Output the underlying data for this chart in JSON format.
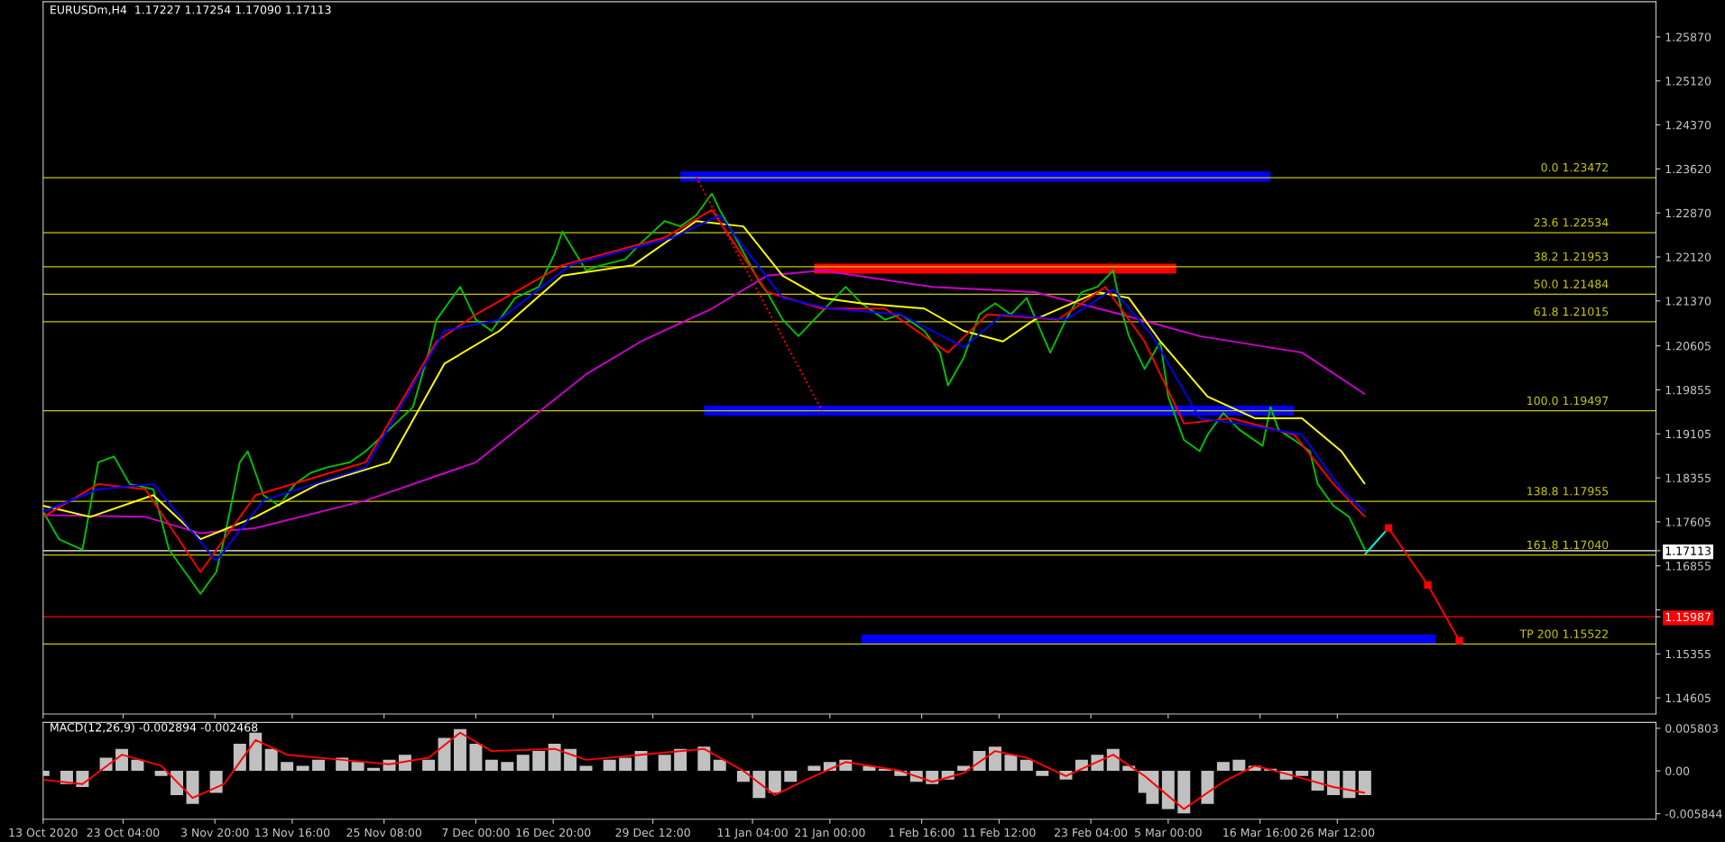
{
  "chart_data": [
    {
      "type": "line",
      "title": "EURUSDm,H4  1.17227 1.17254 1.17090 1.17113",
      "xlim": [
        "2020-10-13",
        "2021-05-06"
      ],
      "ylim": [
        1.1433,
        1.2647
      ],
      "tick_labels": "y",
      "xticks": [
        "2020-10-13T00:00",
        "2020-10-23T04:00",
        "2020-11-03T20:00",
        "2020-11-13T16:00",
        "2020-11-25T08:00",
        "2020-12-07T00:00",
        "2020-12-16T20:00",
        "2020-12-29T12:00",
        "2021-01-11T04:00",
        "2021-01-21T00:00",
        "2021-02-01T16:00",
        "2021-02-11T12:00",
        "2021-02-23T04:00",
        "2021-03-05T00:00",
        "2021-03-16T16:00",
        "2021-03-26T12:00"
      ],
      "yticks": [
        {
          "value": 1.2587,
          "label": "1.25870"
        },
        {
          "value": 1.2512,
          "label": "1.25120"
        },
        {
          "value": 1.2437,
          "label": "1.24370"
        },
        {
          "value": 1.2362,
          "label": "1.23620"
        },
        {
          "value": 1.2287,
          "label": "1.22870"
        },
        {
          "value": 1.2212,
          "label": "1.22120"
        },
        {
          "value": 1.2137,
          "label": "1.21370"
        },
        {
          "value": 1.20605,
          "label": "1.20605"
        },
        {
          "value": 1.19855,
          "label": "1.19855"
        },
        {
          "value": 1.19105,
          "label": "1.19105"
        },
        {
          "value": 1.18355,
          "label": "1.18355"
        },
        {
          "value": 1.17605,
          "label": "1.17605"
        },
        {
          "value": 1.17113,
          "label": "1.17113"
        },
        {
          "value": 1.16855,
          "label": "1.16855"
        },
        {
          "value": 1.16105,
          "label": null
        },
        {
          "value": 1.15987,
          "label": "1.15987"
        },
        {
          "value": 1.15355,
          "label": "1.15355"
        },
        {
          "value": 1.14605,
          "label": "1.14605"
        }
      ],
      "ref_lines": [
        {
          "axis": "y",
          "value": 1.23472,
          "label": "0.0 1.23472",
          "color": "#c8c800"
        },
        {
          "axis": "y",
          "value": 1.22534,
          "label": "23.6 1.22534",
          "color": "#c8c800"
        },
        {
          "axis": "y",
          "value": 1.21953,
          "label": "38.2 1.21953",
          "color": "#c8c800"
        },
        {
          "axis": "y",
          "value": 1.21484,
          "label": "50.0 1.21484",
          "color": "#c8c800"
        },
        {
          "axis": "y",
          "value": 1.21015,
          "label": "61.8 1.21015",
          "color": "#c8c800"
        },
        {
          "axis": "y",
          "value": 1.19497,
          "label": "100.0 1.19497",
          "color": "#c8c800"
        },
        {
          "axis": "y",
          "value": 1.17955,
          "label": "138.8 1.17955",
          "color": "#c8c800"
        },
        {
          "axis": "y",
          "value": 1.1704,
          "label": "161.8 1.17040",
          "color": "#c8c800"
        },
        {
          "axis": "y",
          "value": 1.15522,
          "label": "TP 200 1.15522",
          "color": "#c8c800"
        },
        {
          "axis": "y",
          "value": 1.17113,
          "color": "#ffffff"
        },
        {
          "axis": "y",
          "value": 1.15987,
          "color": "#ff0000"
        }
      ],
      "series": [
        {
          "color": "#0000ff",
          "x": [
            "2021-01-02",
            "2021-03-18"
          ],
          "values": [
            1.2349,
            1.2349
          ]
        },
        {
          "color": "#ff0000",
          "x": [
            "2021-01-19",
            "2021-03-06"
          ],
          "values": [
            1.2192,
            1.2192
          ]
        },
        {
          "color": "#0000ff",
          "x": [
            "2021-01-05",
            "2021-03-21"
          ],
          "values": [
            1.195,
            1.195
          ]
        },
        {
          "color": "#0000ff",
          "x": [
            "2021-01-25",
            "2021-04-08"
          ],
          "values": [
            1.156,
            1.156
          ]
        },
        {
          "color": "#cc00cc",
          "x": [
            "2020-10-13",
            "2020-10-26",
            "2020-11-02",
            "2020-11-09",
            "2020-11-23",
            "2020-12-07",
            "2020-12-21",
            "2020-12-28",
            "2021-01-06",
            "2021-01-13",
            "2021-01-20",
            "2021-02-03",
            "2021-02-16",
            "2021-02-27",
            "2021-03-09",
            "2021-03-22",
            "2021-03-30"
          ],
          "values": [
            1.1772,
            1.1769,
            1.1741,
            1.175,
            1.1797,
            1.1862,
            1.2012,
            1.2068,
            1.2124,
            1.218,
            1.2189,
            1.2161,
            1.2152,
            1.2114,
            1.2077,
            1.2049,
            1.1978
          ]
        },
        {
          "color": "#00c000",
          "x": [
            "2020-10-13",
            "2020-10-15",
            "2020-10-18",
            "2020-10-20",
            "2020-10-22",
            "2020-10-24",
            "2020-10-27",
            "2020-10-29",
            "2020-11-01",
            "2020-11-02",
            "2020-11-04",
            "2020-11-05",
            "2020-11-07",
            "2020-11-08",
            "2020-11-10",
            "2020-11-12",
            "2020-11-14",
            "2020-11-16",
            "2020-11-18",
            "2020-11-21",
            "2020-11-23",
            "2020-11-26",
            "2020-11-29",
            "2020-12-01",
            "2020-12-02",
            "2020-12-05",
            "2020-12-07",
            "2020-12-09",
            "2020-12-10",
            "2020-12-12",
            "2020-12-15",
            "2020-12-17",
            "2020-12-18",
            "2020-12-21",
            "2020-12-23",
            "2020-12-26",
            "2020-12-28",
            "2020-12-31",
            "2021-01-02",
            "2021-01-04",
            "2021-01-06",
            "2021-01-07",
            "2021-01-09",
            "2021-01-12",
            "2021-01-13",
            "2021-01-15",
            "2021-01-17",
            "2021-01-19",
            "2021-01-21",
            "2021-01-23",
            "2021-01-25",
            "2021-01-28",
            "2021-01-30",
            "2021-02-02",
            "2021-02-04",
            "2021-02-05",
            "2021-02-07",
            "2021-02-09",
            "2021-02-11",
            "2021-02-13",
            "2021-02-15",
            "2021-02-18",
            "2021-02-20",
            "2021-02-22",
            "2021-02-24",
            "2021-02-26",
            "2021-02-27",
            "2021-02-28",
            "2021-03-02",
            "2021-03-04",
            "2021-03-05",
            "2021-03-07",
            "2021-03-09",
            "2021-03-10",
            "2021-03-12",
            "2021-03-14",
            "2021-03-17",
            "2021-03-18",
            "2021-03-19",
            "2021-03-21",
            "2021-03-23",
            "2021-03-24",
            "2021-03-26",
            "2021-03-28",
            "2021-03-30"
          ],
          "values": [
            1.1778,
            1.1731,
            1.1713,
            1.1862,
            1.1872,
            1.1825,
            1.1816,
            1.1713,
            1.1657,
            1.1638,
            1.1675,
            1.1731,
            1.1862,
            1.1881,
            1.1806,
            1.1788,
            1.1825,
            1.1844,
            1.1853,
            1.1862,
            1.1881,
            1.1918,
            1.1956,
            1.2049,
            1.2105,
            1.2161,
            1.2105,
            1.2086,
            1.2105,
            1.2142,
            1.2161,
            1.2217,
            1.2255,
            1.2189,
            1.2198,
            1.2208,
            1.2236,
            1.2273,
            1.2264,
            1.2283,
            1.232,
            1.2292,
            1.2245,
            1.217,
            1.2152,
            1.2105,
            1.2077,
            1.2105,
            1.2133,
            1.2161,
            1.2133,
            1.2105,
            1.2114,
            1.2086,
            1.2049,
            1.1993,
            1.204,
            1.2114,
            1.2133,
            1.2114,
            1.2142,
            1.2049,
            1.2105,
            1.2152,
            1.2161,
            1.2189,
            1.2124,
            1.2077,
            1.2021,
            1.2068,
            1.1974,
            1.19,
            1.1881,
            1.1909,
            1.1946,
            1.1918,
            1.189,
            1.1956,
            1.1918,
            1.19,
            1.1881,
            1.1825,
            1.1788,
            1.1769,
            1.1713
          ]
        },
        {
          "color": "#ffff00",
          "x": [
            "2020-10-13",
            "2020-10-19",
            "2020-10-27",
            "2020-11-02",
            "2020-11-09",
            "2020-11-17",
            "2020-11-26",
            "2020-12-03",
            "2020-12-10",
            "2020-12-18",
            "2020-12-27",
            "2021-01-04",
            "2021-01-10",
            "2021-01-15",
            "2021-01-20",
            "2021-01-25",
            "2021-02-02",
            "2021-02-07",
            "2021-02-12",
            "2021-02-16",
            "2021-02-24",
            "2021-02-28",
            "2021-03-04",
            "2021-03-10",
            "2021-03-16",
            "2021-03-22",
            "2021-03-27",
            "2021-03-30"
          ],
          "values": [
            1.1788,
            1.1769,
            1.1806,
            1.1731,
            1.1769,
            1.1825,
            1.1862,
            1.203,
            1.2086,
            1.218,
            1.2198,
            1.2273,
            1.2264,
            1.218,
            1.2142,
            1.2133,
            1.2124,
            1.2086,
            1.2068,
            1.2105,
            1.2152,
            1.2142,
            1.2068,
            1.1974,
            1.1937,
            1.1937,
            1.1881,
            1.1825
          ]
        },
        {
          "color": "#ff0000",
          "x": [
            "2020-10-13",
            "2020-10-20",
            "2020-10-26",
            "2020-11-02",
            "2020-11-09",
            "2020-11-23",
            "2020-12-02",
            "2020-12-07",
            "2020-12-18",
            "2020-12-31",
            "2021-01-06",
            "2021-01-13",
            "2021-01-20",
            "2021-01-28",
            "2021-02-05",
            "2021-02-10",
            "2021-02-19",
            "2021-02-25",
            "2021-03-02",
            "2021-03-07",
            "2021-03-13",
            "2021-03-21",
            "2021-03-26",
            "2021-03-30"
          ],
          "values": [
            1.1769,
            1.1825,
            1.1816,
            1.1675,
            1.1806,
            1.1862,
            1.2068,
            1.2114,
            1.2198,
            1.2245,
            1.2292,
            1.2152,
            1.2124,
            1.2124,
            1.2049,
            1.2114,
            1.2105,
            1.2161,
            1.2068,
            1.1928,
            1.1937,
            1.1909,
            1.1825,
            1.1769
          ]
        },
        {
          "color": "#0000ff",
          "x": [
            "2020-10-13",
            "2020-10-20",
            "2020-10-27",
            "2020-11-04",
            "2020-11-10",
            "2020-11-23",
            "2020-12-03",
            "2020-12-10",
            "2020-12-19",
            "2021-01-01",
            "2021-01-07",
            "2021-01-15",
            "2021-01-21",
            "2021-01-30",
            "2021-02-07",
            "2021-02-12",
            "2021-02-20",
            "2021-02-26",
            "2021-03-03",
            "2021-03-09",
            "2021-03-14",
            "2021-03-22",
            "2021-03-27",
            "2021-03-30"
          ],
          "values": [
            1.1778,
            1.1816,
            1.1825,
            1.1694,
            1.1797,
            1.1853,
            1.2086,
            1.2105,
            1.2198,
            1.2245,
            1.2283,
            1.2142,
            1.2124,
            1.2114,
            1.2058,
            1.2114,
            1.2105,
            1.2157,
            1.2077,
            1.1937,
            1.1928,
            1.1909,
            1.1816,
            1.1778
          ]
        },
        {
          "color": "#ff0000",
          "line_style": "dotted",
          "x": [
            "2021-01-04",
            "2021-01-20"
          ],
          "values": [
            1.2348,
            1.195
          ]
        },
        {
          "color": "#00ffcc",
          "x": [
            "2021-03-30",
            "2021-04-02"
          ],
          "values": [
            1.1705,
            1.175
          ]
        },
        {
          "color": "#ff0000",
          "marker": "square",
          "x": [
            "2021-04-02",
            "2021-04-07",
            "2021-04-11"
          ],
          "values": [
            1.175,
            1.1653,
            1.1558
          ]
        }
      ]
    },
    {
      "type": "bar",
      "title": "MACD(12,26,9) -0.002894 -0.002468",
      "xlim": [
        "2020-10-13",
        "2021-05-06"
      ],
      "ylim": [
        -0.0066,
        0.0066
      ],
      "xticks": [
        {
          "value": "2020-10-13T00:00",
          "label": "13 Oct 2020"
        },
        {
          "value": "2020-10-23T04:00",
          "label": "23 Oct 04:00"
        },
        {
          "value": "2020-11-03T20:00",
          "label": "3 Nov 20:00"
        },
        {
          "value": "2020-11-13T16:00",
          "label": "13 Nov 16:00"
        },
        {
          "value": "2020-11-25T08:00",
          "label": "25 Nov 08:00"
        },
        {
          "value": "2020-12-07T00:00",
          "label": "7 Dec 00:00"
        },
        {
          "value": "2020-12-16T20:00",
          "label": "16 Dec 20:00"
        },
        {
          "value": "2020-12-29T12:00",
          "label": "29 Dec 12:00"
        },
        {
          "value": "2021-01-11T04:00",
          "label": "11 Jan 04:00"
        },
        {
          "value": "2021-01-21T00:00",
          "label": "21 Jan 00:00"
        },
        {
          "value": "2021-02-01T16:00",
          "label": "1 Feb 16:00"
        },
        {
          "value": "2021-02-11T12:00",
          "label": "11 Feb 12:00"
        },
        {
          "value": "2021-02-23T04:00",
          "label": "23 Feb 04:00"
        },
        {
          "value": "2021-03-05T00:00",
          "label": "5 Mar 00:00"
        },
        {
          "value": "2021-03-16T16:00",
          "label": "16 Mar 16:00"
        },
        {
          "value": "2021-03-26T12:00",
          "label": "26 Mar 12:00"
        }
      ],
      "yticks": [
        0.005803,
        {
          "value": 0,
          "label": "0.00"
        },
        -0.005844
      ],
      "series": [
        {
          "color": "#c0c0c0",
          "x": [
            "2020-10-13",
            "2020-10-16",
            "2020-10-18",
            "2020-10-21",
            "2020-10-23",
            "2020-10-25",
            "2020-10-28",
            "2020-10-30",
            "2020-11-01",
            "2020-11-04",
            "2020-11-05",
            "2020-11-07",
            "2020-11-09",
            "2020-11-11",
            "2020-11-13",
            "2020-11-15",
            "2020-11-17",
            "2020-11-20",
            "2020-11-22",
            "2020-11-24",
            "2020-11-26",
            "2020-11-28",
            "2020-12-01",
            "2020-12-03",
            "2020-12-05",
            "2020-12-07",
            "2020-12-09",
            "2020-12-11",
            "2020-12-13",
            "2020-12-15",
            "2020-12-17",
            "2020-12-19",
            "2020-12-21",
            "2020-12-24",
            "2020-12-26",
            "2020-12-28",
            "2020-12-31",
            "2021-01-02",
            "2021-01-05",
            "2021-01-07",
            "2021-01-10",
            "2021-01-12",
            "2021-01-14",
            "2021-01-16",
            "2021-01-18",
            "2021-01-19",
            "2021-01-21",
            "2021-01-23",
            "2021-01-26",
            "2021-01-28",
            "2021-01-30",
            "2021-02-01",
            "2021-02-03",
            "2021-02-05",
            "2021-02-07",
            "2021-02-09",
            "2021-02-11",
            "2021-02-13",
            "2021-02-15",
            "2021-02-17",
            "2021-02-20",
            "2021-02-22",
            "2021-02-24",
            "2021-02-26",
            "2021-02-28",
            "2021-03-02",
            "2021-03-03",
            "2021-03-05",
            "2021-03-07",
            "2021-03-10",
            "2021-03-12",
            "2021-03-14",
            "2021-03-16",
            "2021-03-18",
            "2021-03-20",
            "2021-03-22",
            "2021-03-24",
            "2021-03-26",
            "2021-03-28",
            "2021-03-30"
          ],
          "values": [
            -0.0007,
            -0.0018,
            -0.0022,
            0.0018,
            0.003,
            0.0015,
            -0.0007,
            -0.0033,
            -0.0045,
            -0.003,
            0,
            0.0037,
            0.0052,
            0.003,
            0.0012,
            0.0007,
            0.0015,
            0.0018,
            0.0012,
            0.0004,
            0.0015,
            0.0022,
            0.0015,
            0.0045,
            0.0057,
            0.0037,
            0.0015,
            0.0012,
            0.0022,
            0.0027,
            0.0037,
            0.003,
            0.0007,
            0.0015,
            0.0018,
            0.0027,
            0.0022,
            0.003,
            0.0033,
            0.0015,
            -0.0015,
            -0.0037,
            -0.003,
            -0.0015,
            0,
            0.0007,
            0.0012,
            0.0015,
            0.0007,
            0.0003,
            -0.0007,
            -0.0015,
            -0.0018,
            -0.0012,
            0.0007,
            0.0027,
            0.0033,
            0.0022,
            0.0015,
            -0.0007,
            -0.0012,
            0.0015,
            0.0022,
            0.003,
            0.0007,
            -0.003,
            -0.0045,
            -0.0052,
            -0.0058,
            -0.0045,
            0.0012,
            0.0015,
            0.0007,
            0.0003,
            -0.0012,
            -0.0007,
            -0.0027,
            -0.0033,
            -0.0037,
            -0.0033
          ]
        },
        {
          "type": "line",
          "color": "#ff0000",
          "x": [
            "2020-10-13",
            "2020-10-18",
            "2020-10-23",
            "2020-10-28",
            "2020-11-01",
            "2020-11-05",
            "2020-11-09",
            "2020-11-13",
            "2020-11-20",
            "2020-11-26",
            "2020-12-01",
            "2020-12-05",
            "2020-12-09",
            "2020-12-17",
            "2020-12-21",
            "2020-12-28",
            "2021-01-05",
            "2021-01-10",
            "2021-01-14",
            "2021-01-18",
            "2021-01-23",
            "2021-01-30",
            "2021-02-03",
            "2021-02-07",
            "2021-02-11",
            "2021-02-15",
            "2021-02-20",
            "2021-02-26",
            "2021-03-02",
            "2021-03-07",
            "2021-03-12",
            "2021-03-16",
            "2021-03-20",
            "2021-03-26",
            "2021-03-30"
          ],
          "values": [
            -0.0012,
            -0.0018,
            0.0022,
            0.0007,
            -0.0037,
            -0.0018,
            0.0042,
            0.0022,
            0.0015,
            0.0009,
            0.0018,
            0.0052,
            0.0027,
            0.003,
            0.0015,
            0.0022,
            0.003,
            0,
            -0.0033,
            -0.0012,
            0.0012,
            0,
            -0.0015,
            -0.0003,
            0.0027,
            0.0018,
            -0.0007,
            0.0022,
            -0.0007,
            -0.0052,
            -0.0015,
            0.0007,
            -0.0004,
            -0.0022,
            -0.003
          ]
        }
      ]
    }
  ]
}
